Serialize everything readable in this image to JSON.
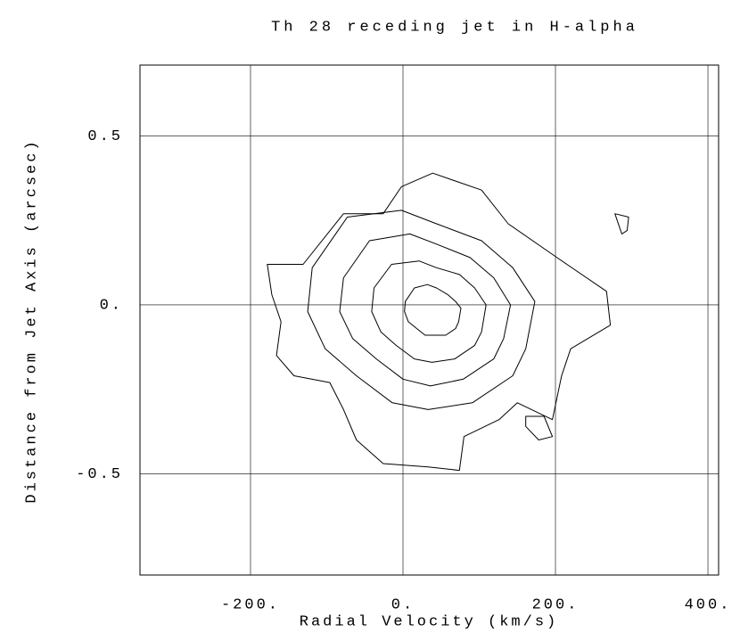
{
  "chart_data": {
    "type": "contour",
    "title": "Th 28 receding jet in H-alpha",
    "xlabel": "Radial Velocity (km/s)",
    "ylabel": "Distance from Jet Axis (arcsec)",
    "xlim": [
      -345,
      414
    ],
    "ylim": [
      -0.8,
      0.71
    ],
    "xticks": [
      {
        "value": -200,
        "label": "-200."
      },
      {
        "value": 0,
        "label": "0."
      },
      {
        "value": 200,
        "label": "200."
      },
      {
        "value": 400,
        "label": "400."
      }
    ],
    "yticks": [
      {
        "value": -0.5,
        "label": "-0.5"
      },
      {
        "value": 0,
        "label": "0."
      },
      0.5
    ],
    "grid": true,
    "color": "#000000",
    "contours": [
      {
        "x": [
          -178,
          -131,
          -78,
          -26,
          -2,
          39,
          103,
          138,
          202,
          267,
          272,
          220,
          208,
          196,
          150,
          126,
          80,
          74,
          33,
          -26,
          -61,
          -78,
          -96,
          -143,
          -166,
          -160,
          -172
        ],
        "y": [
          0.12,
          0.12,
          0.27,
          0.27,
          0.35,
          0.39,
          0.34,
          0.24,
          0.14,
          0.04,
          -0.06,
          -0.13,
          -0.21,
          -0.34,
          -0.29,
          -0.34,
          -0.39,
          -0.49,
          -0.48,
          -0.47,
          -0.4,
          -0.31,
          -0.23,
          -0.21,
          -0.15,
          -0.05,
          0.03
        ]
      },
      {
        "x": [
          -119,
          -73,
          -2,
          44,
          103,
          144,
          173,
          161,
          144,
          91,
          33,
          -14,
          -61,
          -102,
          -125
        ],
        "y": [
          0.11,
          0.26,
          0.28,
          0.24,
          0.19,
          0.11,
          0.01,
          -0.13,
          -0.21,
          -0.29,
          -0.31,
          -0.29,
          -0.21,
          -0.13,
          -0.02
        ]
      },
      {
        "x": [
          -78,
          -44,
          9,
          44,
          88,
          119,
          141,
          132,
          119,
          79,
          36,
          0,
          -35,
          -66,
          -83
        ],
        "y": [
          0.08,
          0.19,
          0.21,
          0.18,
          0.14,
          0.08,
          0.0,
          -0.1,
          -0.16,
          -0.22,
          -0.24,
          -0.22,
          -0.16,
          -0.1,
          -0.02
        ]
      },
      {
        "x": [
          -38,
          -15,
          21,
          44,
          74,
          94,
          109,
          103,
          94,
          68,
          38,
          15,
          -9,
          -29,
          -41
        ],
        "y": [
          0.05,
          0.12,
          0.13,
          0.11,
          0.09,
          0.05,
          0.0,
          -0.08,
          -0.12,
          -0.16,
          -0.17,
          -0.16,
          -0.12,
          -0.08,
          -0.02
        ]
      },
      {
        "x": [
          3,
          15,
          32,
          44,
          59,
          69,
          76,
          73,
          69,
          56,
          41,
          29,
          18,
          7,
          2
        ],
        "y": [
          0.01,
          0.05,
          0.06,
          0.05,
          0.03,
          0.01,
          -0.01,
          -0.05,
          -0.07,
          -0.09,
          -0.09,
          -0.09,
          -0.07,
          -0.05,
          -0.02
        ]
      },
      {
        "x": [
          161,
          185,
          196,
          178,
          161
        ],
        "y": [
          -0.33,
          -0.33,
          -0.39,
          -0.4,
          -0.36
        ]
      },
      {
        "x": [
          278,
          296,
          294,
          287
        ],
        "y": [
          0.27,
          0.26,
          0.22,
          0.21
        ]
      }
    ]
  }
}
